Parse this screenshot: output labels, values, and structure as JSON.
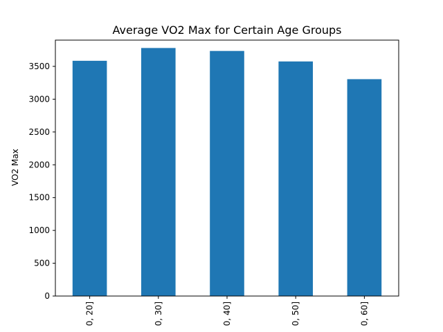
{
  "chart_data": {
    "type": "bar",
    "title": "Average VO2 Max for Certain Age Groups",
    "xlabel": "",
    "ylabel": "VO2 Max",
    "categories": [
      "0, 20]",
      "0, 30]",
      "0, 40]",
      "0, 50]",
      "0, 60]"
    ],
    "values": [
      3585,
      3780,
      3735,
      3575,
      3305
    ],
    "ylim": [
      0,
      3900
    ],
    "yticks": [
      0,
      500,
      1000,
      1500,
      2000,
      2500,
      3000,
      3500
    ],
    "grid": false,
    "legend": "none",
    "bar_color": "#1f77b4"
  }
}
